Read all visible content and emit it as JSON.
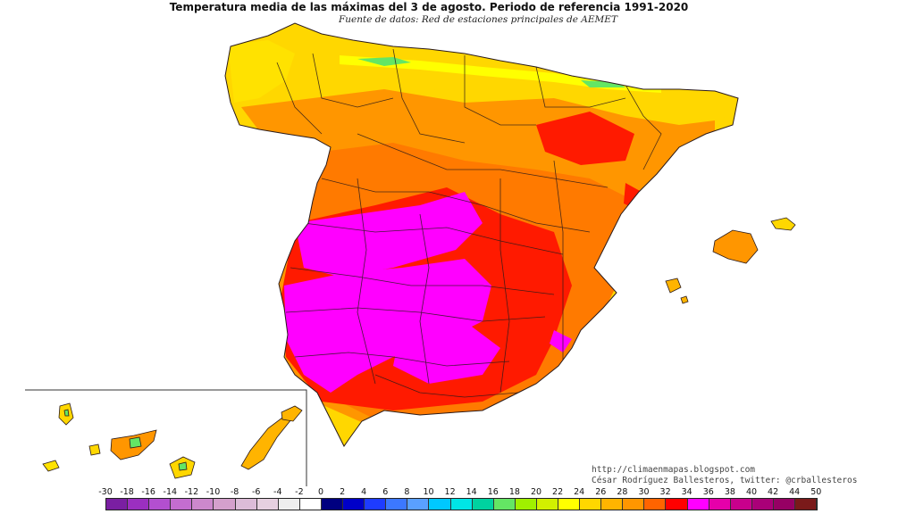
{
  "title": "Temperatura media de las máximas del 3 de agosto. Periodo de referencia 1991-2020",
  "subtitle": "Fuente de datos: Red de estaciones principales de AEMET",
  "credits": {
    "blog": "http://climaenmapas.blogspot.com",
    "author": "César Rodríguez Ballesteros, twitter: @crballesteros"
  },
  "legend": {
    "labels": [
      "-30",
      "-18",
      "-16",
      "-14",
      "-12",
      "-10",
      "-8",
      "-6",
      "-4",
      "-2",
      "0",
      "2",
      "4",
      "6",
      "8",
      "10",
      "12",
      "14",
      "16",
      "18",
      "20",
      "22",
      "24",
      "26",
      "28",
      "30",
      "32",
      "34",
      "36",
      "38",
      "40",
      "42",
      "44",
      "50"
    ],
    "colors": [
      "#7a1fa2",
      "#9b2fc0",
      "#b34fd0",
      "#c46dd0",
      "#cc88cc",
      "#d4a0cc",
      "#dcbcd8",
      "#e6d0e0",
      "#eeeeee",
      "#ffffff",
      "#000080",
      "#0000c8",
      "#1e3cff",
      "#3c78ff",
      "#5aa0ff",
      "#00c8ff",
      "#00e6e6",
      "#00d2a0",
      "#64e664",
      "#a0f000",
      "#d2f000",
      "#ffff00",
      "#ffd700",
      "#ffb400",
      "#ff9600",
      "#ff6400",
      "#ff0000",
      "#ff00ff",
      "#e600aa",
      "#c8008c",
      "#aa0078",
      "#960064",
      "#7a1a1a"
    ]
  }
}
